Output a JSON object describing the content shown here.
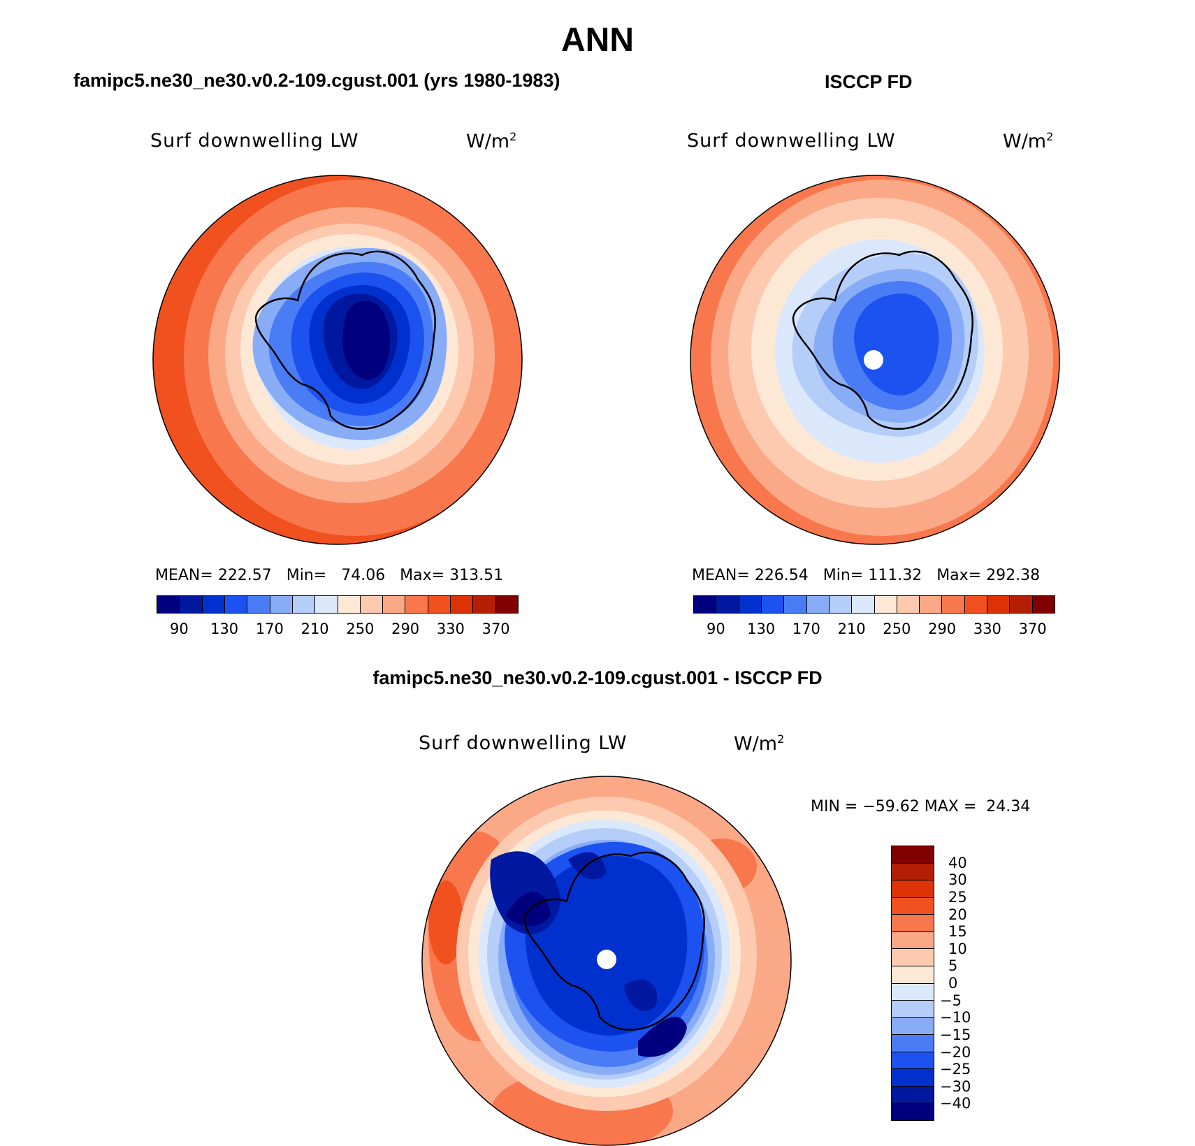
{
  "title": "ANN",
  "panels": [
    {
      "header": "famipc5.ne30_ne30.v0.2-109.cgust.001 (yrs 1980-1983)",
      "variable": "Surf downwelling LW",
      "units": "W/m",
      "units_exp": "2",
      "stats": "MEAN= 222.57   Min=   74.06   Max= 313.51",
      "colorbar_labels": [
        "90",
        "130",
        "170",
        "210",
        "250",
        "290",
        "330",
        "370"
      ]
    },
    {
      "header": "ISCCP FD",
      "variable": "Surf downwelling LW",
      "units": "W/m",
      "units_exp": "2",
      "stats": "MEAN= 226.54   Min= 111.32   Max= 292.38",
      "colorbar_labels": [
        "90",
        "130",
        "170",
        "210",
        "250",
        "290",
        "330",
        "370"
      ]
    },
    {
      "header": "famipc5.ne30_ne30.v0.2-109.cgust.001 - ISCCP FD",
      "variable": "Surf downwelling LW",
      "units": "W/m",
      "units_exp": "2",
      "stats": "MIN = −59.62 MAX =  24.34",
      "colorbar_labels": [
        "40",
        "30",
        "25",
        "20",
        "15",
        "10",
        "5",
        "0",
        "−5",
        "−10",
        "−15",
        "−20",
        "−25",
        "−30",
        "−40"
      ]
    }
  ],
  "colors": {
    "field_scale": [
      "#00007f",
      "#00189f",
      "#0031cf",
      "#1b52f0",
      "#4a7cf5",
      "#89acf7",
      "#b5cdf9",
      "#dbe8fb",
      "#fde8d6",
      "#fdcab0",
      "#fba887",
      "#f9774c",
      "#f1501f",
      "#dc3205",
      "#b41e04",
      "#800000"
    ],
    "diff_scale": [
      "#800000",
      "#b41e04",
      "#dc3205",
      "#f1501f",
      "#f9774c",
      "#fba887",
      "#fdcab0",
      "#fde8d6",
      "#dbe8fb",
      "#b5cdf9",
      "#89acf7",
      "#4a7cf5",
      "#1b52f0",
      "#0031cf",
      "#00189f",
      "#00007f"
    ]
  }
}
